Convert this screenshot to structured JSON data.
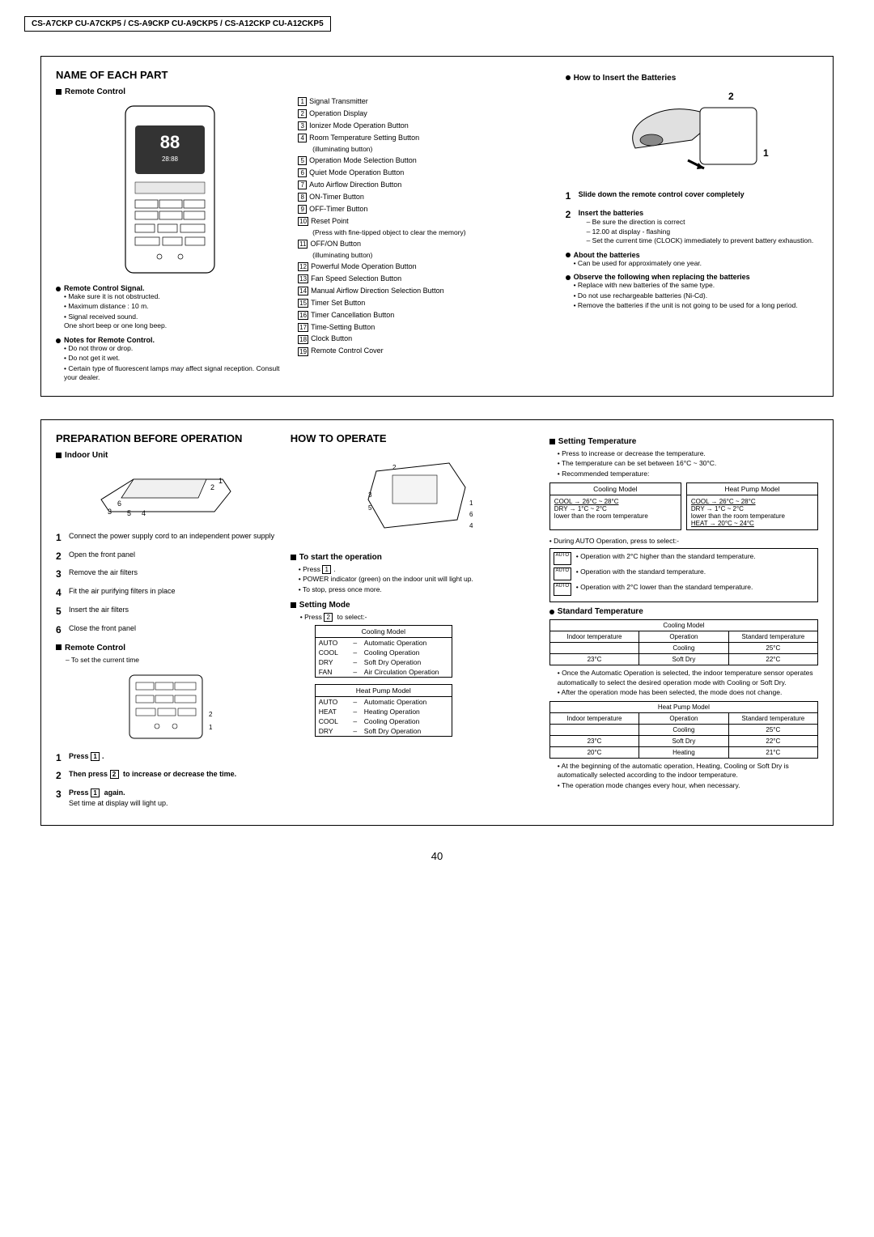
{
  "header": "CS-A7CKP CU-A7CKP5 / CS-A9CKP CU-A9CKP5 / CS-A12CKP CU-A12CKP5",
  "pageNumber": "40",
  "panel1": {
    "title": "NAME OF EACH PART",
    "remoteCtrl": "Remote Control",
    "parts": [
      "Signal Transmitter",
      "Operation Display",
      "Ionizer Mode Operation Button",
      "Room Temperature Setting Button\n(illuminating button)",
      "Operation Mode Selection Button",
      "Quiet Mode Operation Button",
      "Auto Airflow Direction Button",
      "ON-Timer Button",
      "OFF-Timer Button",
      "Reset Point\n(Press with fine-tipped object to clear the memory)",
      "OFF/ON Button\n(illuminating button)",
      "Powerful Mode Operation Button",
      "Fan Speed Selection Button",
      "Manual Airflow Direction Selection Button",
      "Timer Set Button",
      "Timer Cancellation Button",
      "Time-Setting Button",
      "Clock Button",
      "Remote Control Cover"
    ],
    "signalTitle": "Remote Control Signal.",
    "signalItems": [
      "Make sure it is not obstructed.",
      "Maximum distance : 10 m.",
      "Signal received sound.\nOne short beep or one long beep."
    ],
    "notesTitle": "Notes for Remote Control.",
    "notesItems": [
      "Do not throw or drop.",
      "Do not get it wet.",
      "Certain type of fluorescent lamps may affect signal reception. Consult your dealer."
    ],
    "batTitle": "How  to Insert the Batteries",
    "bat1": "Slide down the remote control cover completely",
    "bat2Title": "Insert the batteries",
    "bat2Items": [
      "Be sure the direction is correct",
      "12.00 at display - flashing",
      "Set the current time (CLOCK) immediately to prevent battery exhaustion."
    ],
    "aboutTitle": "About the batteries",
    "aboutItems": [
      "Can be used for approximately one year."
    ],
    "observeTitle": "Observe the following when replacing the batteries",
    "observeItems": [
      "Replace with new batteries of the same type.",
      "Do not use rechargeable batteries (Ni-Cd).",
      "Remove the batteries if the unit is not going to be used for a long period."
    ]
  },
  "panel2": {
    "colA": {
      "title": "PREPARATION BEFORE OPERATION",
      "indoor": "Indoor Unit",
      "steps": [
        "Connect the power supply cord to an independent power supply",
        "Open the front panel",
        "Remove the air filters",
        "Fit the air purifying filters in place",
        "Insert the air filters",
        "Close the front panel"
      ],
      "remoteCtrl": "Remote Control",
      "remoteSub": "– To set the current time",
      "p1": "Press",
      "p2": "Then press",
      "p2b": "to increase or decrease the time.",
      "p3a": "Press",
      "p3b": "again.",
      "p3c": "Set time at display will light up."
    },
    "colB": {
      "title": "HOW TO OPERATE",
      "startTitle": "To start the operation",
      "startItems": [
        "Press",
        "POWER indicator (green) on the indoor unit will light up.",
        "To stop, press once more."
      ],
      "modeTitle": "Setting Mode",
      "modeSub": "Press",
      "modeSub2": "to select:-",
      "coolHdr": "Cooling Model",
      "coolRows": [
        [
          "AUTO",
          "–",
          "Automatic Operation"
        ],
        [
          "COOL",
          "–",
          "Cooling Operation"
        ],
        [
          "DRY",
          "–",
          "Soft Dry Operation"
        ],
        [
          "FAN",
          "–",
          "Air Circulation Operation"
        ]
      ],
      "heatHdr": "Heat Pump Model",
      "heatRows": [
        [
          "AUTO",
          "–",
          "Automatic Operation"
        ],
        [
          "HEAT",
          "–",
          "Heating Operation"
        ],
        [
          "COOL",
          "–",
          "Cooling Operation"
        ],
        [
          "DRY",
          "–",
          "Soft Dry Operation"
        ]
      ]
    },
    "colC": {
      "tempTitle": "Setting Temperature",
      "tempItems": [
        "Press      to increase or decrease the temperature.",
        "The temperature can be set between 16°C ~ 30°C.",
        "Recommended temperature:"
      ],
      "coolModel": "Cooling Model",
      "heatModel": "Heat Pump Model",
      "coolLine": "COOL  →  26°C ~ 28°C",
      "dryLine": "DRY   →  1°C ~  2°C\nlower than the room temperature",
      "coolLine2": "COOL  →  26°C ~ 28°C",
      "dryLine2": "DRY   →  1°C ~  2°C\nlower than the room temperature",
      "heatLine": "HEAT  → 20°C ~ 24°C",
      "duringAuto": "During AUTO Operation, press      to select:-",
      "autoOps": [
        "Operation with 2°C higher than the standard temperature.",
        "Operation with the standard temperature.",
        "Operation with 2°C lower than the standard temperature."
      ],
      "stdTitle": "Standard Temperature",
      "stdCool": {
        "hdr": "Cooling Model",
        "cols": [
          "Indoor temperature",
          "Operation",
          "Standard temperature"
        ],
        "rows": [
          [
            "",
            "Cooling",
            "25°C"
          ],
          [
            "23°C",
            "Soft Dry",
            "22°C"
          ]
        ]
      },
      "stdNote1": [
        "Once the Automatic Operation is selected, the indoor temperature sensor operates automatically to select the desired operation mode with Cooling or Soft Dry.",
        "After the operation mode has been selected, the mode does not change."
      ],
      "stdHeat": {
        "hdr": "Heat Pump Model",
        "cols": [
          "Indoor temperature",
          "Operation",
          "Standard temperature"
        ],
        "rows": [
          [
            "",
            "Cooling",
            "25°C"
          ],
          [
            "23°C",
            "Soft Dry",
            "22°C"
          ],
          [
            "20°C",
            "Heating",
            "21°C"
          ]
        ]
      },
      "stdNote2": [
        "At the beginning of the automatic operation, Heating, Cooling or Soft Dry is automatically selected according to the indoor temperature.",
        "The operation mode changes every hour, when necessary."
      ]
    }
  }
}
